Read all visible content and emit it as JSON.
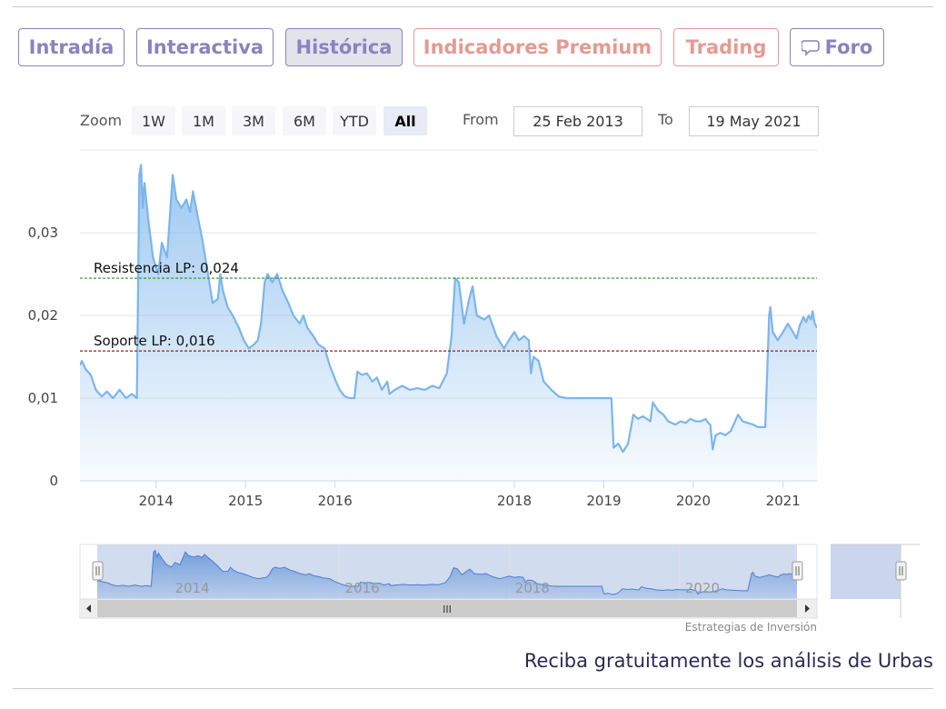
{
  "tabs": [
    {
      "label": "Intradía"
    },
    {
      "label": "Interactiva"
    },
    {
      "label": "Histórica"
    },
    {
      "label": "Indicadores Premium"
    },
    {
      "label": "Trading"
    },
    {
      "label": "Foro"
    }
  ],
  "range_selector": {
    "zoom_label": "Zoom",
    "buttons": [
      "1W",
      "1M",
      "3M",
      "6M",
      "YTD",
      "All"
    ],
    "selected": "All",
    "from_label": "From",
    "from_value": "25 Feb 2013",
    "to_label": "To",
    "to_value": "19 May 2021"
  },
  "navigator": {
    "scrollbar_grip": "III"
  },
  "credit": "Estrategias de Inversión",
  "promo": "Reciba gratuitamente los análisis de Urbas",
  "colors": {
    "tab": "#8b82bf",
    "tab_warn": "#e59a92",
    "series": "#7cb5ec",
    "resistance": "#2e8b2e",
    "support": "#9b1b1b"
  },
  "chart_data": {
    "type": "area",
    "xlim": [
      "2013-02-25",
      "2021-05-19"
    ],
    "ylim": [
      0,
      0.04
    ],
    "y_ticks": [
      0,
      0.01,
      0.02,
      0.03
    ],
    "y_tick_labels": [
      "0",
      "0,01",
      "0,02",
      "0,03"
    ],
    "x_tick_labels": [
      "2014",
      "2015",
      "2016",
      "2018",
      "2019",
      "2020",
      "2021"
    ],
    "navigator_labels": [
      "2014",
      "2016",
      "2018",
      "2020"
    ],
    "reference_lines": [
      {
        "label": "Resistencia LP: 0,024",
        "value": 0.0245
      },
      {
        "label": "Soporte LP: 0,016",
        "value": 0.0157
      }
    ],
    "series": [
      {
        "points": [
          [
            "2013-02-25",
            0.014
          ],
          [
            "2013-03-05",
            0.0145
          ],
          [
            "2013-03-20",
            0.0135
          ],
          [
            "2013-04-10",
            0.0128
          ],
          [
            "2013-05-01",
            0.011
          ],
          [
            "2013-05-25",
            0.0102
          ],
          [
            "2013-06-15",
            0.0108
          ],
          [
            "2013-07-10",
            0.01
          ],
          [
            "2013-08-05",
            0.011
          ],
          [
            "2013-09-01",
            0.01
          ],
          [
            "2013-09-25",
            0.0105
          ],
          [
            "2013-10-15",
            0.01
          ],
          [
            "2013-10-25",
            0.037
          ],
          [
            "2013-11-01",
            0.0382
          ],
          [
            "2013-11-08",
            0.033
          ],
          [
            "2013-11-15",
            0.036
          ],
          [
            "2013-12-01",
            0.0315
          ],
          [
            "2013-12-20",
            0.027
          ],
          [
            "2014-01-10",
            0.025
          ],
          [
            "2014-01-25",
            0.0288
          ],
          [
            "2014-02-15",
            0.027
          ],
          [
            "2014-03-01",
            0.033
          ],
          [
            "2014-03-10",
            0.037
          ],
          [
            "2014-03-25",
            0.034
          ],
          [
            "2014-04-15",
            0.033
          ],
          [
            "2014-05-05",
            0.034
          ],
          [
            "2014-05-20",
            0.0325
          ],
          [
            "2014-06-01",
            0.035
          ],
          [
            "2014-06-20",
            0.032
          ],
          [
            "2014-07-10",
            0.029
          ],
          [
            "2014-08-01",
            0.025
          ],
          [
            "2014-08-20",
            0.0215
          ],
          [
            "2014-09-10",
            0.022
          ],
          [
            "2014-09-20",
            0.025
          ],
          [
            "2014-10-01",
            0.023
          ],
          [
            "2014-10-20",
            0.021
          ],
          [
            "2014-11-10",
            0.02
          ],
          [
            "2014-12-05",
            0.0185
          ],
          [
            "2014-12-25",
            0.017
          ],
          [
            "2015-01-15",
            0.016
          ],
          [
            "2015-02-05",
            0.0165
          ],
          [
            "2015-02-20",
            0.017
          ],
          [
            "2015-03-05",
            0.019
          ],
          [
            "2015-03-20",
            0.024
          ],
          [
            "2015-04-01",
            0.025
          ],
          [
            "2015-04-20",
            0.024
          ],
          [
            "2015-05-10",
            0.025
          ],
          [
            "2015-06-01",
            0.023
          ],
          [
            "2015-06-25",
            0.0215
          ],
          [
            "2015-07-15",
            0.02
          ],
          [
            "2015-08-10",
            0.019
          ],
          [
            "2015-08-25",
            0.02
          ],
          [
            "2015-09-10",
            0.0185
          ],
          [
            "2015-10-05",
            0.0175
          ],
          [
            "2015-10-25",
            0.0165
          ],
          [
            "2015-11-20",
            0.016
          ],
          [
            "2015-12-10",
            0.014
          ],
          [
            "2016-01-05",
            0.012
          ],
          [
            "2016-01-20",
            0.011
          ],
          [
            "2016-02-10",
            0.0102
          ],
          [
            "2016-03-01",
            0.01
          ],
          [
            "2016-03-20",
            0.01
          ],
          [
            "2016-04-01",
            0.0132
          ],
          [
            "2016-04-20",
            0.0128
          ],
          [
            "2016-05-10",
            0.013
          ],
          [
            "2016-06-01",
            0.012
          ],
          [
            "2016-06-20",
            0.0125
          ],
          [
            "2016-07-10",
            0.011
          ],
          [
            "2016-08-01",
            0.012
          ],
          [
            "2016-08-10",
            0.0105
          ],
          [
            "2016-09-01",
            0.011
          ],
          [
            "2016-10-01",
            0.0115
          ],
          [
            "2016-11-01",
            0.011
          ],
          [
            "2016-12-01",
            0.0112
          ],
          [
            "2017-01-01",
            0.011
          ],
          [
            "2017-02-01",
            0.0115
          ],
          [
            "2017-03-01",
            0.0112
          ],
          [
            "2017-04-01",
            0.013
          ],
          [
            "2017-04-20",
            0.0175
          ],
          [
            "2017-05-05",
            0.0245
          ],
          [
            "2017-05-20",
            0.024
          ],
          [
            "2017-06-10",
            0.019
          ],
          [
            "2017-07-01",
            0.022
          ],
          [
            "2017-07-15",
            0.0235
          ],
          [
            "2017-08-01",
            0.02
          ],
          [
            "2017-09-01",
            0.0195
          ],
          [
            "2017-09-20",
            0.02
          ],
          [
            "2017-10-20",
            0.0175
          ],
          [
            "2017-11-20",
            0.016
          ],
          [
            "2017-12-10",
            0.017
          ],
          [
            "2018-01-01",
            0.018
          ],
          [
            "2018-01-20",
            0.017
          ],
          [
            "2018-02-10",
            0.0175
          ],
          [
            "2018-03-01",
            0.017
          ],
          [
            "2018-03-10",
            0.013
          ],
          [
            "2018-03-20",
            0.015
          ],
          [
            "2018-04-10",
            0.0145
          ],
          [
            "2018-05-01",
            0.012
          ],
          [
            "2018-06-01",
            0.011
          ],
          [
            "2018-07-01",
            0.0102
          ],
          [
            "2018-08-01",
            0.01
          ],
          [
            "2018-09-01",
            0.01
          ],
          [
            "2018-10-01",
            0.01
          ],
          [
            "2018-11-01",
            0.01
          ],
          [
            "2018-12-01",
            0.01
          ],
          [
            "2019-01-01",
            0.01
          ],
          [
            "2019-02-01",
            0.01
          ],
          [
            "2019-02-10",
            0.004
          ],
          [
            "2019-03-01",
            0.0045
          ],
          [
            "2019-03-20",
            0.0035
          ],
          [
            "2019-04-10",
            0.0045
          ],
          [
            "2019-05-01",
            0.008
          ],
          [
            "2019-05-20",
            0.0075
          ],
          [
            "2019-06-10",
            0.0078
          ],
          [
            "2019-07-10",
            0.0072
          ],
          [
            "2019-07-20",
            0.0095
          ],
          [
            "2019-08-10",
            0.0085
          ],
          [
            "2019-09-01",
            0.008
          ],
          [
            "2019-09-20",
            0.0072
          ],
          [
            "2019-10-20",
            0.0068
          ],
          [
            "2019-11-10",
            0.0072
          ],
          [
            "2019-12-01",
            0.007
          ],
          [
            "2019-12-20",
            0.0075
          ],
          [
            "2020-01-10",
            0.0072
          ],
          [
            "2020-02-01",
            0.0072
          ],
          [
            "2020-02-20",
            0.0075
          ],
          [
            "2020-03-01",
            0.007
          ],
          [
            "2020-03-10",
            0.0068
          ],
          [
            "2020-03-20",
            0.0038
          ],
          [
            "2020-04-01",
            0.0055
          ],
          [
            "2020-04-20",
            0.0058
          ],
          [
            "2020-05-10",
            0.0055
          ],
          [
            "2020-06-01",
            0.006
          ],
          [
            "2020-07-01",
            0.008
          ],
          [
            "2020-07-20",
            0.0072
          ],
          [
            "2020-08-10",
            0.007
          ],
          [
            "2020-09-01",
            0.0068
          ],
          [
            "2020-09-20",
            0.0065
          ],
          [
            "2020-10-01",
            0.0065
          ],
          [
            "2020-10-20",
            0.0065
          ],
          [
            "2020-11-05",
            0.02
          ],
          [
            "2020-11-10",
            0.021
          ],
          [
            "2020-11-20",
            0.018
          ],
          [
            "2020-12-10",
            0.017
          ],
          [
            "2021-01-01",
            0.018
          ],
          [
            "2021-01-20",
            0.019
          ],
          [
            "2021-02-10",
            0.018
          ],
          [
            "2021-02-25",
            0.0172
          ],
          [
            "2021-03-10",
            0.0188
          ],
          [
            "2021-03-25",
            0.0198
          ],
          [
            "2021-04-05",
            0.0192
          ],
          [
            "2021-04-15",
            0.02
          ],
          [
            "2021-04-25",
            0.0195
          ],
          [
            "2021-05-01",
            0.0205
          ],
          [
            "2021-05-10",
            0.019
          ],
          [
            "2021-05-19",
            0.0185
          ]
        ]
      }
    ]
  }
}
